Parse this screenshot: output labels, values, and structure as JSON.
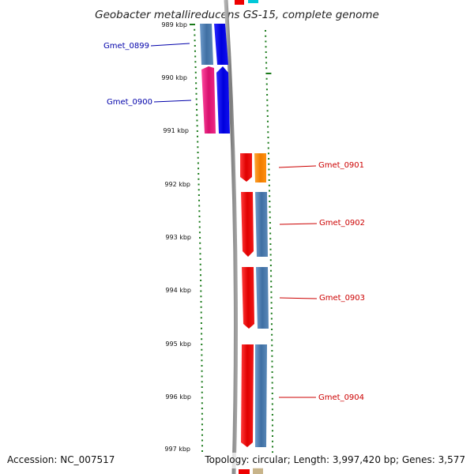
{
  "map": {
    "title": "Geobacter metallireducens GS-15, complete genome",
    "ruler_labels": [
      "989 kbp",
      "990 kbp",
      "991 kbp",
      "992 kbp",
      "993 kbp",
      "994 kbp",
      "995 kbp",
      "996 kbp",
      "997 kbp"
    ],
    "genes": [
      {
        "label": "Gmet_0899",
        "strand": "left",
        "color": "#0000aa"
      },
      {
        "label": "Gmet_0900",
        "strand": "left",
        "color": "#0000aa"
      },
      {
        "label": "Gmet_0901",
        "strand": "right",
        "color": "#cc0000"
      },
      {
        "label": "Gmet_0902",
        "strand": "right",
        "color": "#cc0000"
      },
      {
        "label": "Gmet_0903",
        "strand": "right",
        "color": "#cc0000"
      },
      {
        "label": "Gmet_0904",
        "strand": "right",
        "color": "#cc0000"
      }
    ],
    "colors": {
      "backbone": "#8a8a8a",
      "tick": "#1a7a1a",
      "steelblue": "#4a7fb5",
      "blue": "#0000ee",
      "magenta": "#e0197a",
      "red": "#ee0000",
      "orange": "#ff8c00",
      "cyan": "#00c8d8"
    }
  },
  "footer": {
    "accession": "Accession: NC_007517",
    "topology": "Topology: circular; Length: 3,997,420 bp; Genes: 3,577"
  }
}
